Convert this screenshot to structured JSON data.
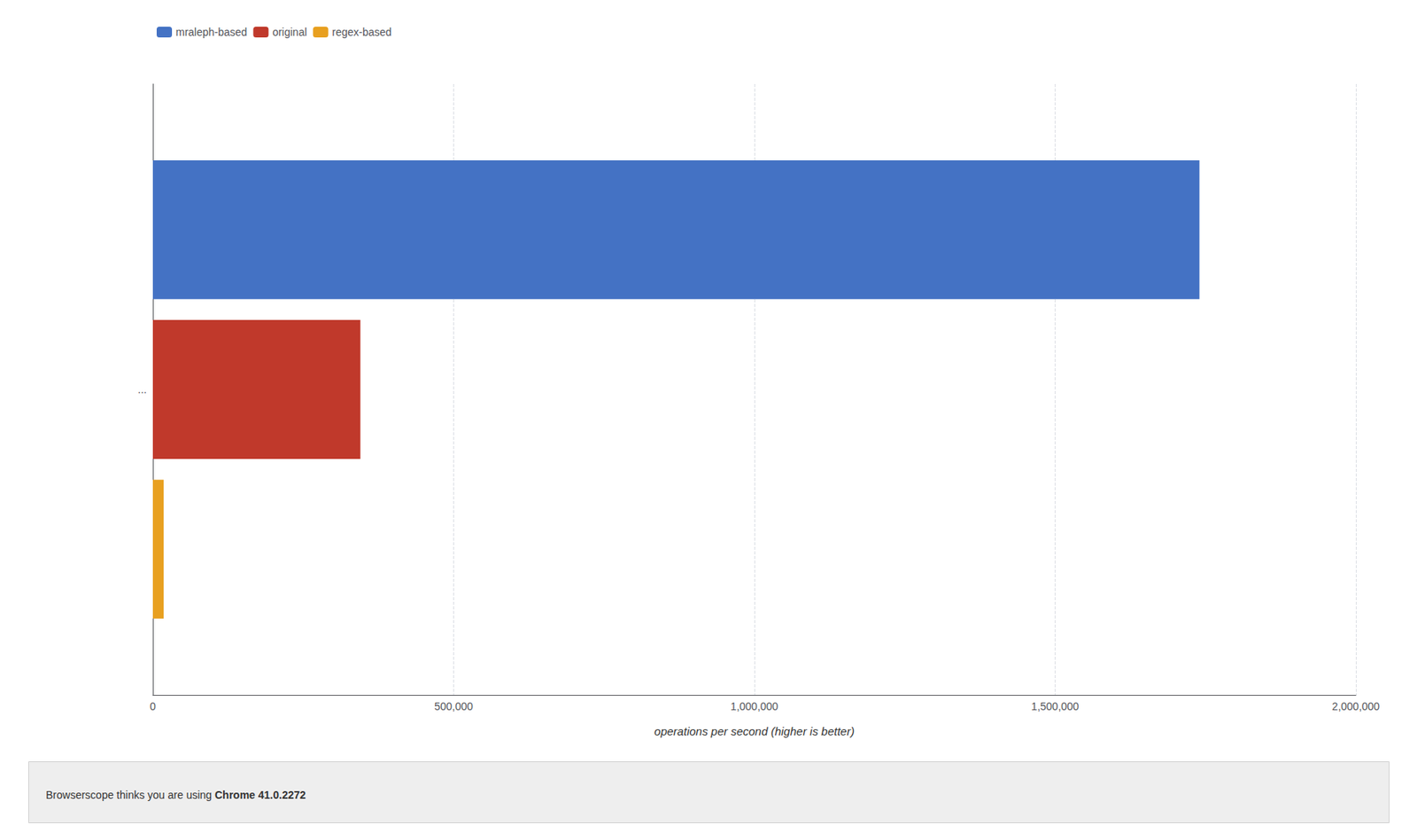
{
  "chart_data": {
    "type": "bar",
    "orientation": "horizontal",
    "categories": [
      "..."
    ],
    "series": [
      {
        "name": "mraleph-based",
        "color": "#4472C4",
        "values": [
          1740000
        ]
      },
      {
        "name": "original",
        "color": "#C0392B",
        "values": [
          345000
        ]
      },
      {
        "name": "regex-based",
        "color": "#E8A020",
        "values": [
          18000
        ]
      }
    ],
    "xlabel": "operations per second (higher is better)",
    "xlim": [
      0,
      2000000
    ],
    "xticks": [
      0,
      {
        "value": 500000,
        "label": "500,000"
      },
      {
        "value": 1000000,
        "label": "1,000,000"
      },
      {
        "value": 1500000,
        "label": "1,500,000"
      },
      {
        "value": 2000000,
        "label": "2,000,000"
      }
    ],
    "grid": true,
    "legend": "top-left",
    "annotations": [
      "Browserscope thinks you are using",
      "Chrome 41.0.2272"
    ]
  }
}
